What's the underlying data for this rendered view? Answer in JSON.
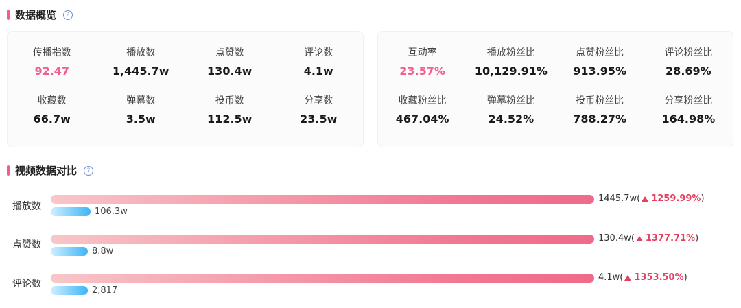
{
  "overview": {
    "title": "数据概览",
    "help": "?",
    "left_metrics": [
      {
        "label": "传播指数",
        "value": "92.47",
        "highlight": true
      },
      {
        "label": "播放数",
        "value": "1,445.7w",
        "highlight": false
      },
      {
        "label": "点赞数",
        "value": "130.4w",
        "highlight": false
      },
      {
        "label": "评论数",
        "value": "4.1w",
        "highlight": false
      },
      {
        "label": "收藏数",
        "value": "66.7w",
        "highlight": false
      },
      {
        "label": "弹幕数",
        "value": "3.5w",
        "highlight": false
      },
      {
        "label": "投币数",
        "value": "112.5w",
        "highlight": false
      },
      {
        "label": "分享数",
        "value": "23.5w",
        "highlight": false
      }
    ],
    "right_metrics": [
      {
        "label": "互动率",
        "value": "23.57%",
        "highlight": true
      },
      {
        "label": "播放粉丝比",
        "value": "10,129.91%",
        "highlight": false
      },
      {
        "label": "点赞粉丝比",
        "value": "913.95%",
        "highlight": false
      },
      {
        "label": "评论粉丝比",
        "value": "28.69%",
        "highlight": false
      },
      {
        "label": "收藏粉丝比",
        "value": "467.04%",
        "highlight": false
      },
      {
        "label": "弹幕粉丝比",
        "value": "24.52%",
        "highlight": false
      },
      {
        "label": "投币粉丝比",
        "value": "788.27%",
        "highlight": false
      },
      {
        "label": "分享粉丝比",
        "value": "164.98%",
        "highlight": false
      }
    ]
  },
  "compare": {
    "title": "视频数据对比",
    "help": "?",
    "rows": [
      {
        "label": "播放数",
        "main": "1445.7w(",
        "pct": "1259.99%",
        "close": ")",
        "ref": "106.3w"
      },
      {
        "label": "点赞数",
        "main": "130.4w(",
        "pct": "1377.71%",
        "close": ")",
        "ref": "8.8w"
      },
      {
        "label": "评论数",
        "main": "4.1w(",
        "pct": "1353.50%",
        "close": ")",
        "ref": "2,817"
      }
    ]
  },
  "colors": {
    "accent": "#f25d8e",
    "up": "#e5405f",
    "ref_bar": "#3fb4f5"
  }
}
